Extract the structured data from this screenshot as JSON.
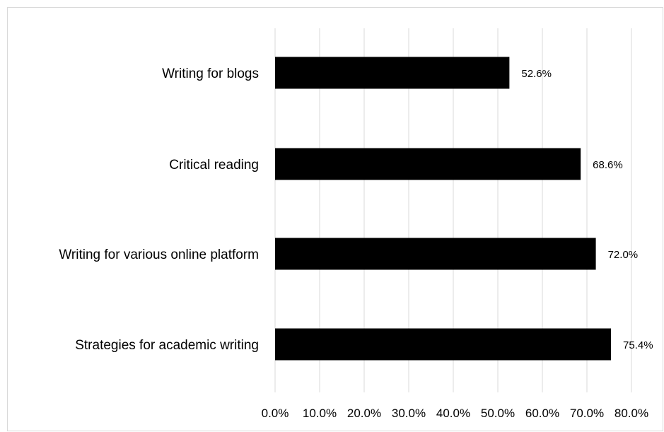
{
  "chart_data": {
    "type": "bar",
    "orientation": "horizontal",
    "title": "",
    "xlabel": "",
    "ylabel": "",
    "categories": [
      "Writing for blogs",
      "Critical reading",
      "Writing for various online platform",
      "Strategies for academic writing"
    ],
    "values": [
      52.6,
      68.6,
      72.0,
      75.4
    ],
    "data_labels": [
      "52.6%",
      "68.6%",
      "72.0%",
      "75.4%"
    ],
    "xlim": [
      0,
      80
    ],
    "x_ticks": [
      "0.0%",
      "10.0%",
      "20.0%",
      "30.0%",
      "40.0%",
      "50.0%",
      "60.0%",
      "70.0%",
      "80.0%"
    ],
    "grid": "vertical",
    "legend": "none",
    "colors": {
      "bar": "#000000",
      "grid": "#d9d9d9",
      "frame": "#d9d9d9"
    }
  }
}
